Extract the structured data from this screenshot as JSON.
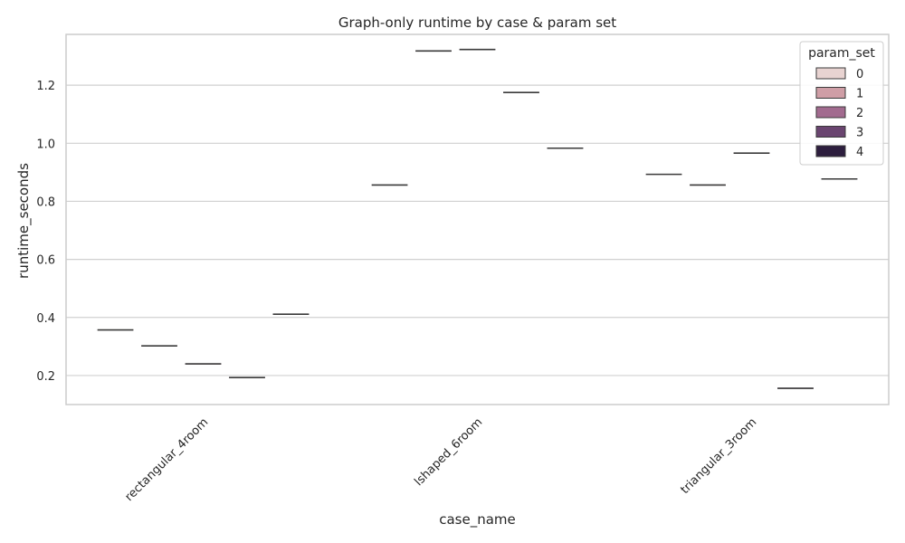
{
  "chart_data": {
    "type": "box",
    "title": "Graph-only runtime by case & param set",
    "xlabel": "case_name",
    "ylabel": "runtime_seconds",
    "ylim": [
      0.1,
      1.375
    ],
    "yticks": [
      0.2,
      0.4,
      0.6,
      0.8,
      1.0,
      1.2
    ],
    "ytick_labels": [
      "0.2",
      "0.4",
      "0.6",
      "0.8",
      "1.0",
      "1.2"
    ],
    "grid": "horizontal",
    "categories": [
      "rectangular_4room",
      "lshaped_6room",
      "triangular_3room"
    ],
    "legend": {
      "title": "param_set",
      "placement": "top-right"
    },
    "series": [
      {
        "name": "0",
        "color": "#e8d3d1",
        "values": [
          0.357,
          0.856,
          0.893
        ]
      },
      {
        "name": "1",
        "color": "#cf9ea6",
        "values": [
          0.302,
          1.318,
          0.856
        ]
      },
      {
        "name": "2",
        "color": "#a26b8f",
        "values": [
          0.24,
          1.323,
          0.966
        ]
      },
      {
        "name": "3",
        "color": "#6a4570",
        "values": [
          0.193,
          1.175,
          0.156
        ]
      },
      {
        "name": "4",
        "color": "#2d1e3e",
        "values": [
          0.411,
          0.983,
          0.877
        ]
      }
    ]
  }
}
